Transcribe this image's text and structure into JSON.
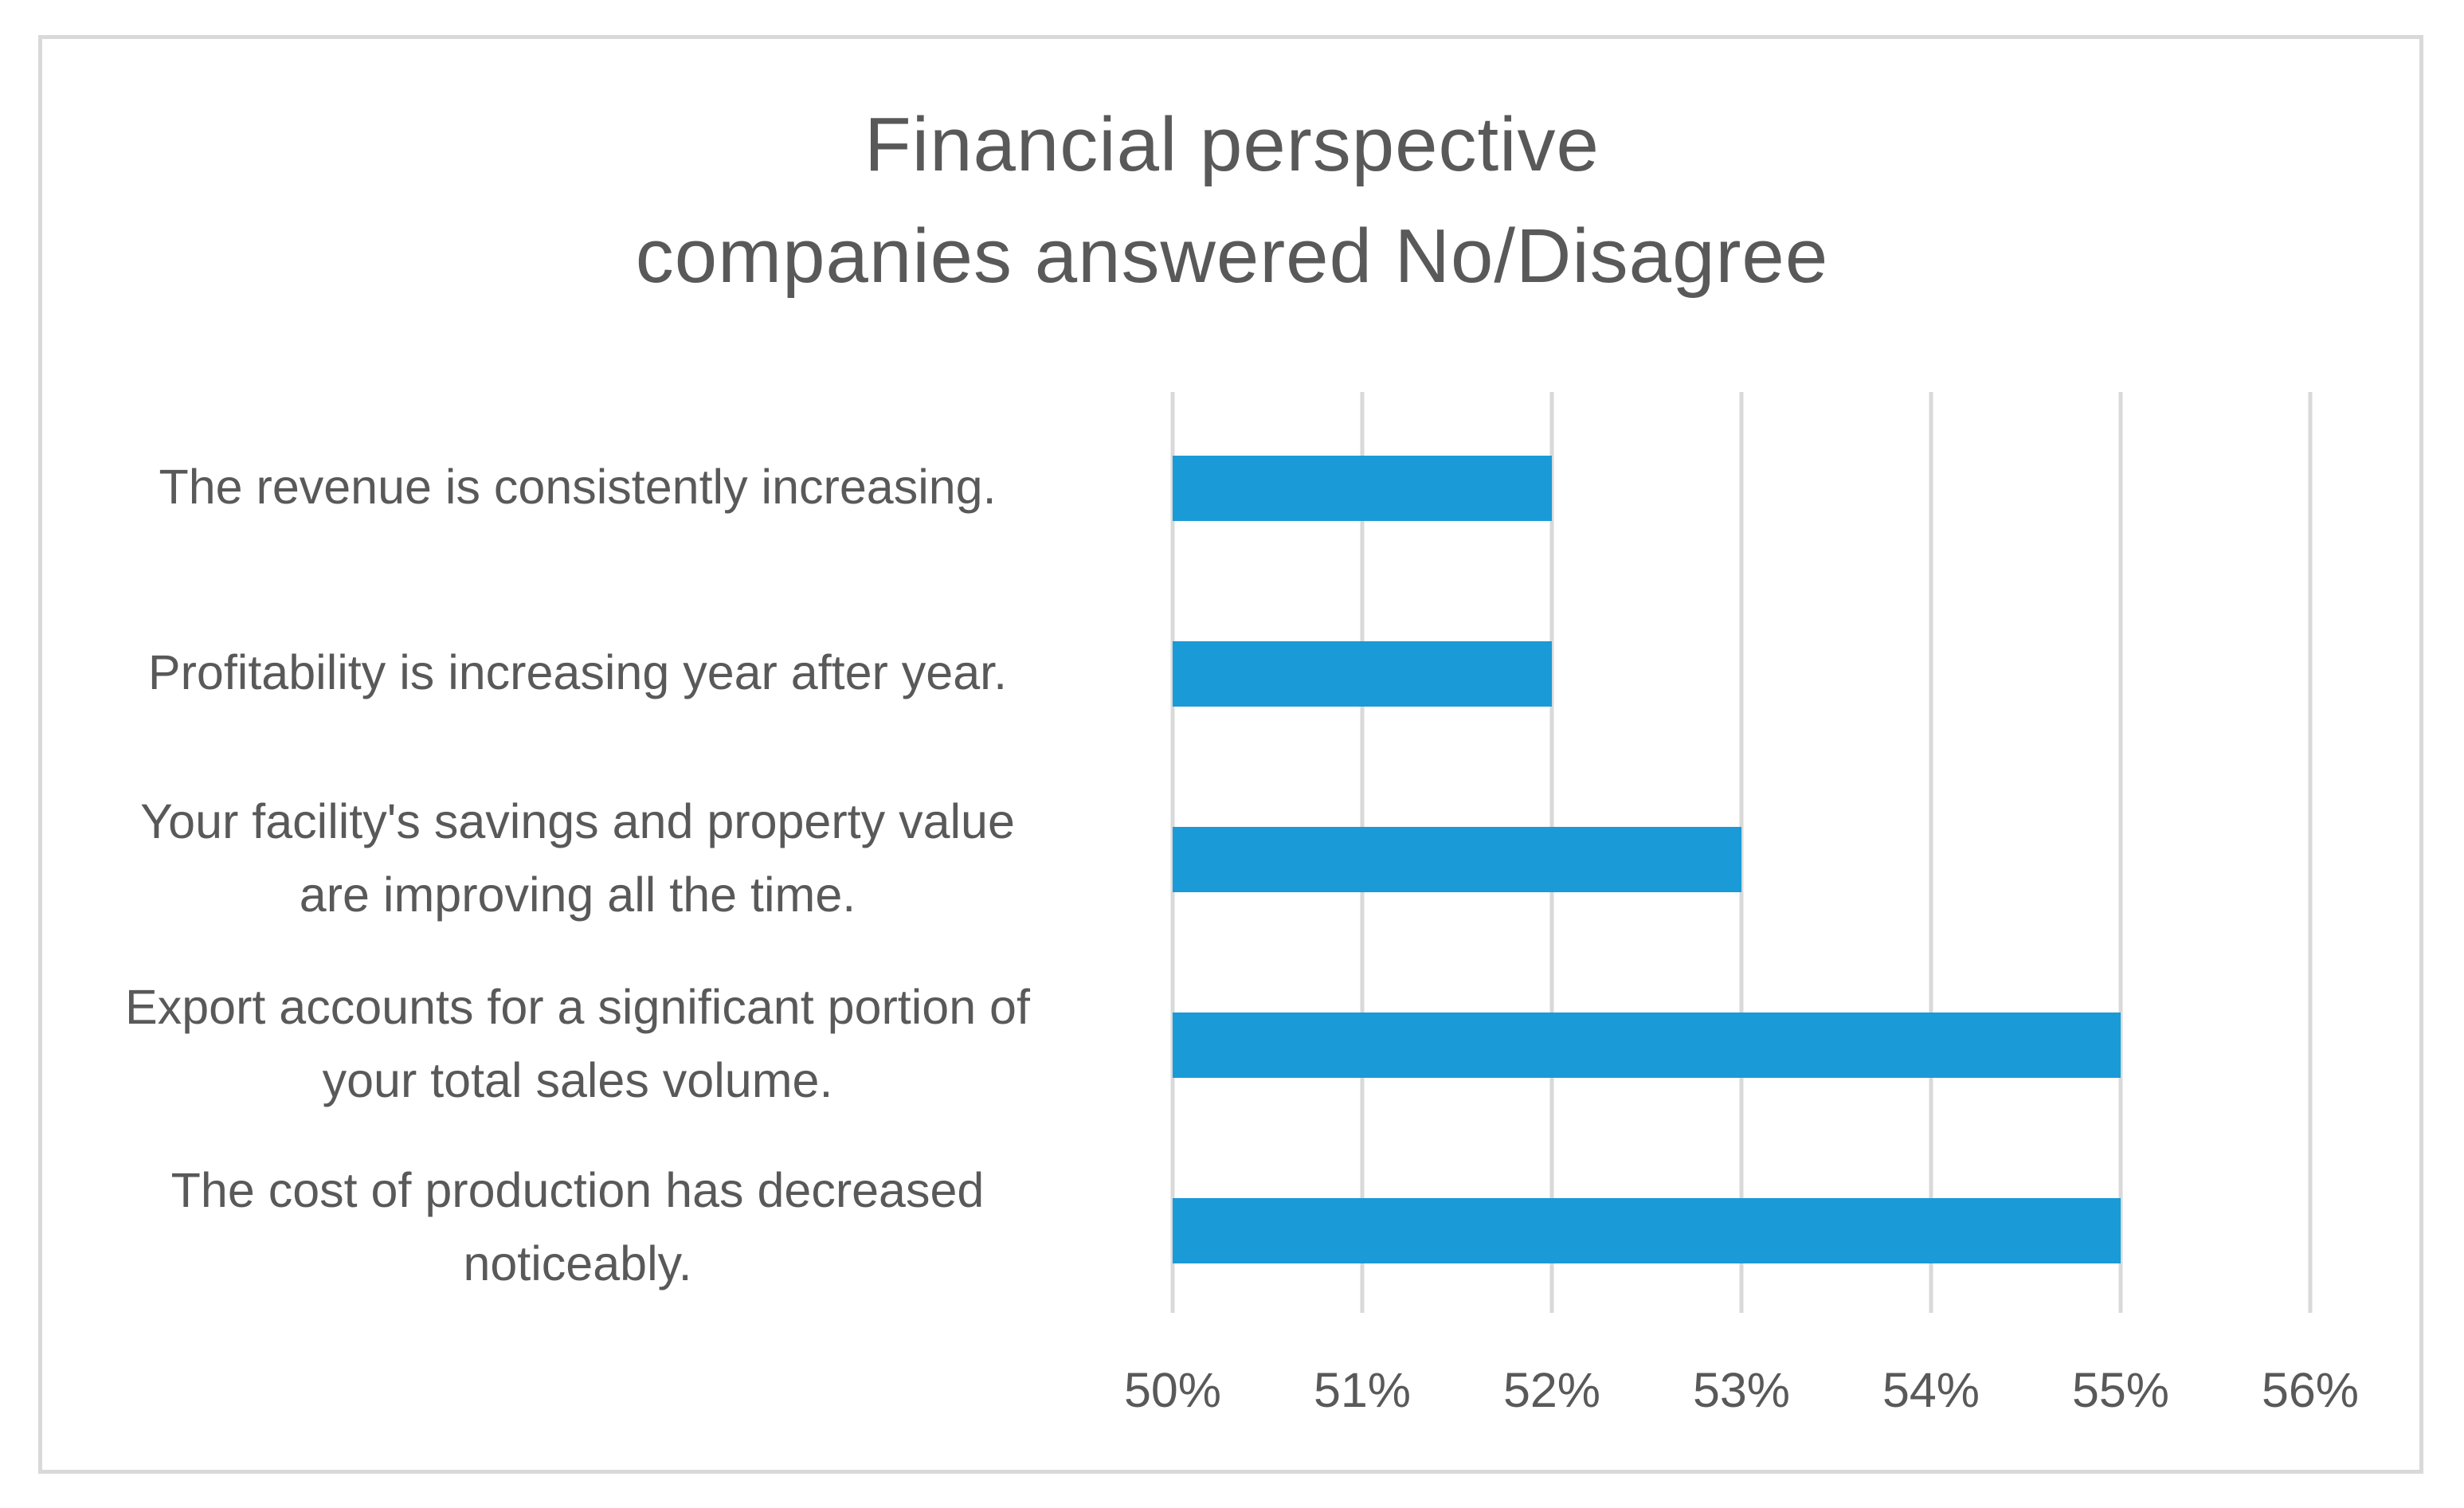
{
  "chart_data": {
    "type": "bar",
    "orientation": "horizontal",
    "title": [
      "Financial perspective",
      "companies answered No/Disagree"
    ],
    "categories": [
      [
        "The revenue is consistently increasing."
      ],
      [
        "Profitability is increasing year after year."
      ],
      [
        "Your facility's savings and property value",
        "are improving all the time."
      ],
      [
        "Export accounts for a significant portion of",
        "your total sales volume."
      ],
      [
        "The cost of production has decreased",
        "noticeably."
      ]
    ],
    "values": [
      52,
      52,
      53,
      55,
      55
    ],
    "xlim": [
      50,
      56
    ],
    "ticks": [
      "50%",
      "51%",
      "52%",
      "53%",
      "54%",
      "55%",
      "56%"
    ],
    "xlabel": "",
    "ylabel": "",
    "grid": true,
    "legend": "none",
    "colors": {
      "bar": "#1a9ad6",
      "grid": "#d9d9d9",
      "text": "#595959"
    }
  }
}
